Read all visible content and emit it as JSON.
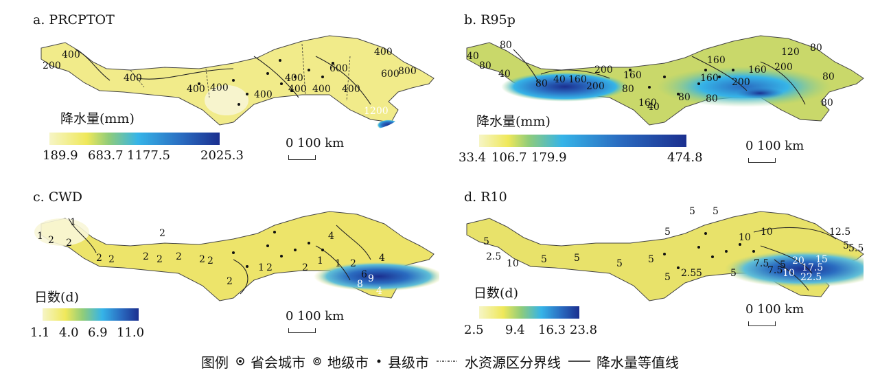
{
  "panels": {
    "a": {
      "title": "a. PRCPTOT",
      "cb_title": "降水量(mm)",
      "ticks": [
        "189.9",
        "683.7",
        "1177.5",
        "2025.3"
      ],
      "contours": [
        "200",
        "400",
        "400",
        "400",
        "400",
        "400",
        "400",
        "400",
        "400",
        "400",
        "600",
        "600",
        "400",
        "800",
        "1200"
      ]
    },
    "b": {
      "title": "b. R95p",
      "cb_title": "降水量(mm)",
      "ticks": [
        "33.4",
        "106.7",
        "179.9",
        "474.8"
      ],
      "contours": [
        "80",
        "40",
        "80",
        "40",
        "80",
        "40",
        "160",
        "200",
        "160",
        "200",
        "80",
        "160",
        "80",
        "40",
        "80",
        "160",
        "160",
        "200",
        "160",
        "200",
        "80",
        "80",
        "120",
        "80"
      ]
    },
    "c": {
      "title": "c. CWD",
      "cb_title": "日数(d)",
      "ticks": [
        "1.1",
        "4.0",
        "6.9",
        "11.0"
      ],
      "contours": [
        "1",
        "1",
        "2",
        "2",
        "2",
        "2",
        "2",
        "2",
        "2",
        "2",
        "2",
        "2",
        "2",
        "4",
        "1",
        "2",
        "2",
        "1",
        "1",
        "2",
        "4",
        "6",
        "8",
        "9",
        "4"
      ]
    },
    "d": {
      "title": "d. R10",
      "cb_title": "日数(d)",
      "ticks": [
        "2.5",
        "9.4",
        "16.3",
        "23.8"
      ],
      "contours": [
        "5",
        "5",
        "5",
        "5",
        "2.5",
        "10",
        "5",
        "5",
        "5",
        "5",
        "5",
        "10",
        "2.5",
        "5",
        "7.5",
        "10",
        "12.5",
        "7.5",
        "5",
        "5",
        "10",
        "15",
        "20",
        "17.5",
        "22.5",
        "5",
        "5.5"
      ]
    }
  },
  "scale_label": "0  100 km",
  "legend": {
    "title": "图例",
    "provincial_capital": "省会城市",
    "prefecture_city": "地级市",
    "county_city": "县级市",
    "water_boundary": "水资源区分界线",
    "isoline": "降水量等值线"
  },
  "colors": {
    "ramp": [
      "#f6f5c6",
      "#efe85a",
      "#8fcc7a",
      "#36b4e8",
      "#2a6bc0",
      "#1b2f8f"
    ],
    "text": "#111111"
  }
}
